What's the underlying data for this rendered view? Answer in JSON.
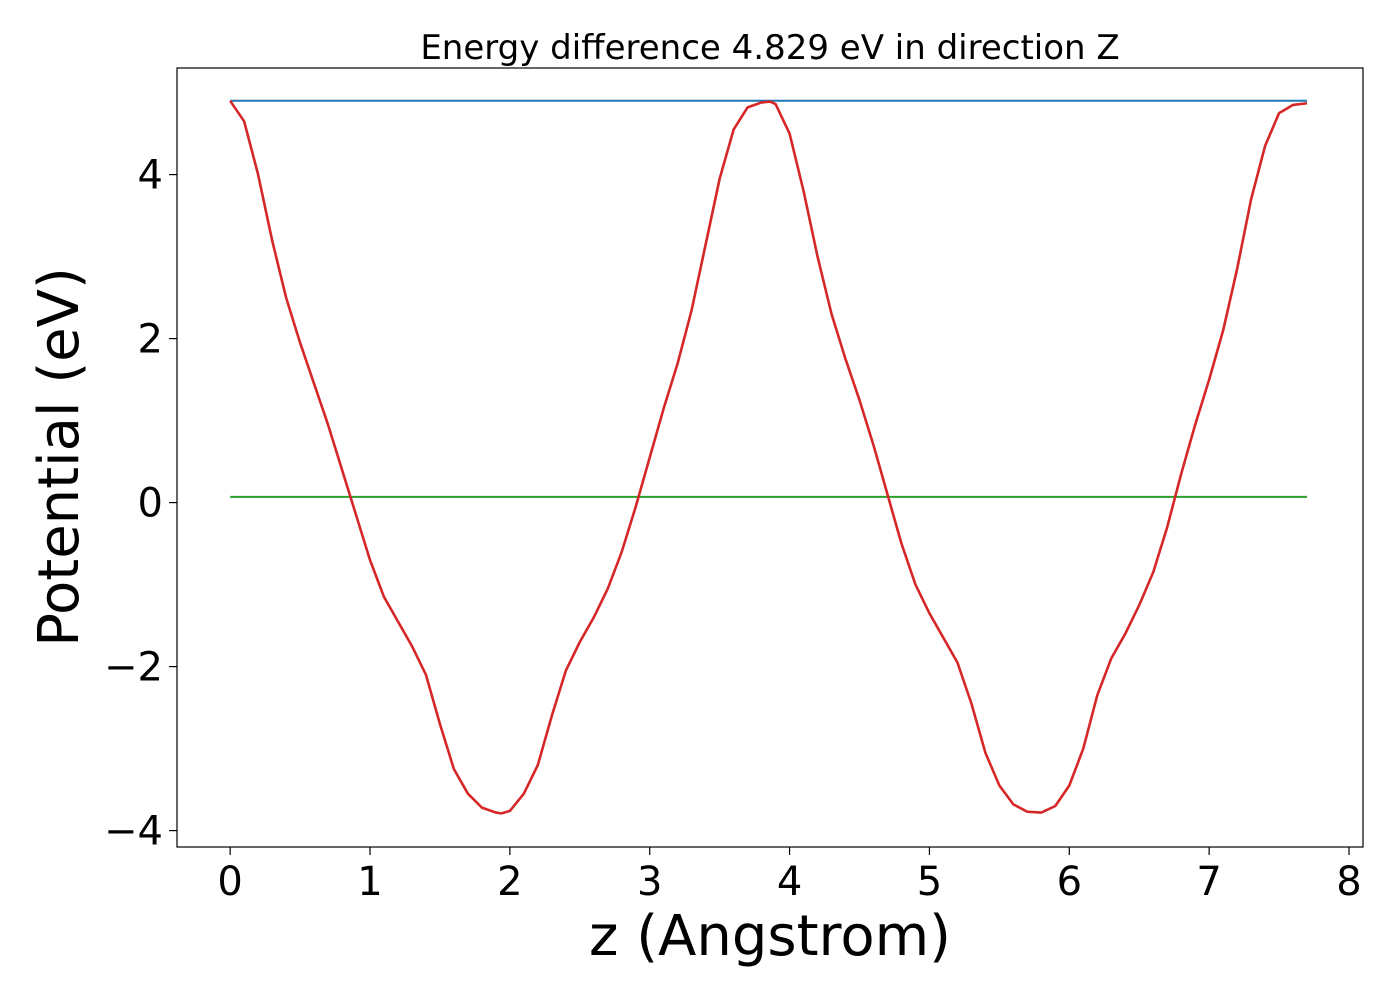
{
  "chart_data": {
    "type": "line",
    "title": "Energy difference 4.829 eV in direction Z",
    "xlabel": "z (Angstrom)",
    "ylabel": "Potential (eV)",
    "xlim": [
      -0.38,
      8.1
    ],
    "ylim": [
      -4.2,
      5.3
    ],
    "xticks": [
      0,
      1,
      2,
      3,
      4,
      5,
      6,
      7,
      8
    ],
    "xtick_labels": [
      "0",
      "1",
      "2",
      "3",
      "4",
      "5",
      "6",
      "7",
      "8"
    ],
    "yticks": [
      -4,
      -2,
      0,
      2,
      4
    ],
    "ytick_labels": [
      "−4",
      "−2",
      "0",
      "2",
      "4"
    ],
    "grid": false,
    "series": [
      {
        "color": "#d62728",
        "x": [
          0.0,
          0.1,
          0.2,
          0.3,
          0.4,
          0.5,
          0.6,
          0.7,
          0.8,
          0.9,
          1.0,
          1.1,
          1.2,
          1.3,
          1.4,
          1.5,
          1.6,
          1.7,
          1.8,
          1.9,
          1.94,
          2.0,
          2.1,
          2.2,
          2.3,
          2.4,
          2.5,
          2.6,
          2.7,
          2.8,
          2.9,
          3.0,
          3.1,
          3.2,
          3.3,
          3.4,
          3.5,
          3.6,
          3.7,
          3.8,
          3.86,
          3.9,
          4.0,
          4.1,
          4.2,
          4.3,
          4.4,
          4.5,
          4.6,
          4.7,
          4.8,
          4.9,
          5.0,
          5.1,
          5.2,
          5.3,
          5.4,
          5.5,
          5.6,
          5.7,
          5.8,
          5.9,
          6.0,
          6.1,
          6.2,
          6.3,
          6.4,
          6.5,
          6.6,
          6.7,
          6.8,
          6.9,
          7.0,
          7.1,
          7.2,
          7.3,
          7.4,
          7.5,
          7.6,
          7.7
        ],
        "y": [
          4.9,
          4.65,
          4.0,
          3.2,
          2.5,
          1.95,
          1.45,
          0.95,
          0.4,
          -0.15,
          -0.7,
          -1.15,
          -1.45,
          -1.75,
          -2.1,
          -2.7,
          -3.25,
          -3.55,
          -3.72,
          -3.78,
          -3.79,
          -3.76,
          -3.55,
          -3.2,
          -2.6,
          -2.05,
          -1.7,
          -1.4,
          -1.05,
          -0.6,
          -0.05,
          0.55,
          1.15,
          1.7,
          2.35,
          3.15,
          3.95,
          4.55,
          4.82,
          4.88,
          4.89,
          4.86,
          4.5,
          3.8,
          3.0,
          2.3,
          1.75,
          1.25,
          0.7,
          0.1,
          -0.5,
          -1.0,
          -1.35,
          -1.65,
          -1.95,
          -2.45,
          -3.05,
          -3.45,
          -3.68,
          -3.77,
          -3.78,
          -3.7,
          -3.45,
          -3.0,
          -2.35,
          -1.9,
          -1.6,
          -1.25,
          -0.85,
          -0.3,
          0.35,
          0.95,
          1.5,
          2.1,
          2.85,
          3.7,
          4.35,
          4.75,
          4.85,
          4.87
        ]
      },
      {
        "color": "#1f77b4",
        "x": [
          0.0,
          7.7
        ],
        "y": [
          4.9,
          4.9
        ]
      },
      {
        "color": "#2ca02c",
        "x": [
          0.0,
          7.7
        ],
        "y": [
          0.07,
          0.07
        ]
      }
    ]
  }
}
